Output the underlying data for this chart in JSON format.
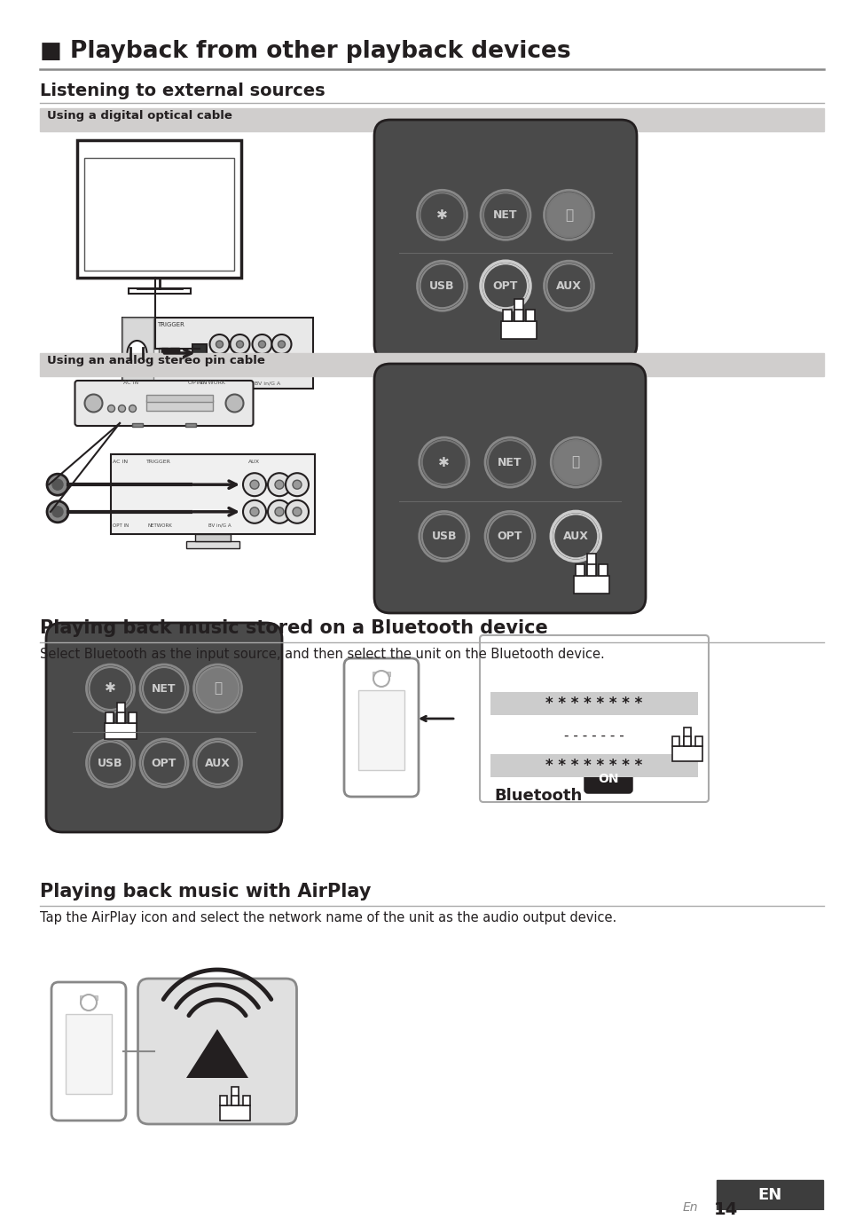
{
  "title": "■ Playback from other playback devices",
  "section1_title": "Listening to external sources",
  "subsection1_title": "Using a digital optical cable",
  "subsection2_title": "Using an analog stereo pin cable",
  "section2_title": "Playing back music stored on a Bluetooth device",
  "section2_desc": "Select Bluetooth as the input source, and then select the unit on the Bluetooth device.",
  "section3_title": "Playing back music with AirPlay",
  "section3_desc": "Tap the AirPlay icon and select the network name of the unit as the audio output device.",
  "footer_en": "En",
  "footer_num": "14",
  "bg_color": "#ffffff",
  "title_color": "#231f20",
  "subsection_bg": "#d0cecd",
  "dark_panel_color": "#4a4a4a",
  "dark_panel_lower": "#5a5a5a",
  "body_text_color": "#231f20",
  "line_color": "#888888"
}
